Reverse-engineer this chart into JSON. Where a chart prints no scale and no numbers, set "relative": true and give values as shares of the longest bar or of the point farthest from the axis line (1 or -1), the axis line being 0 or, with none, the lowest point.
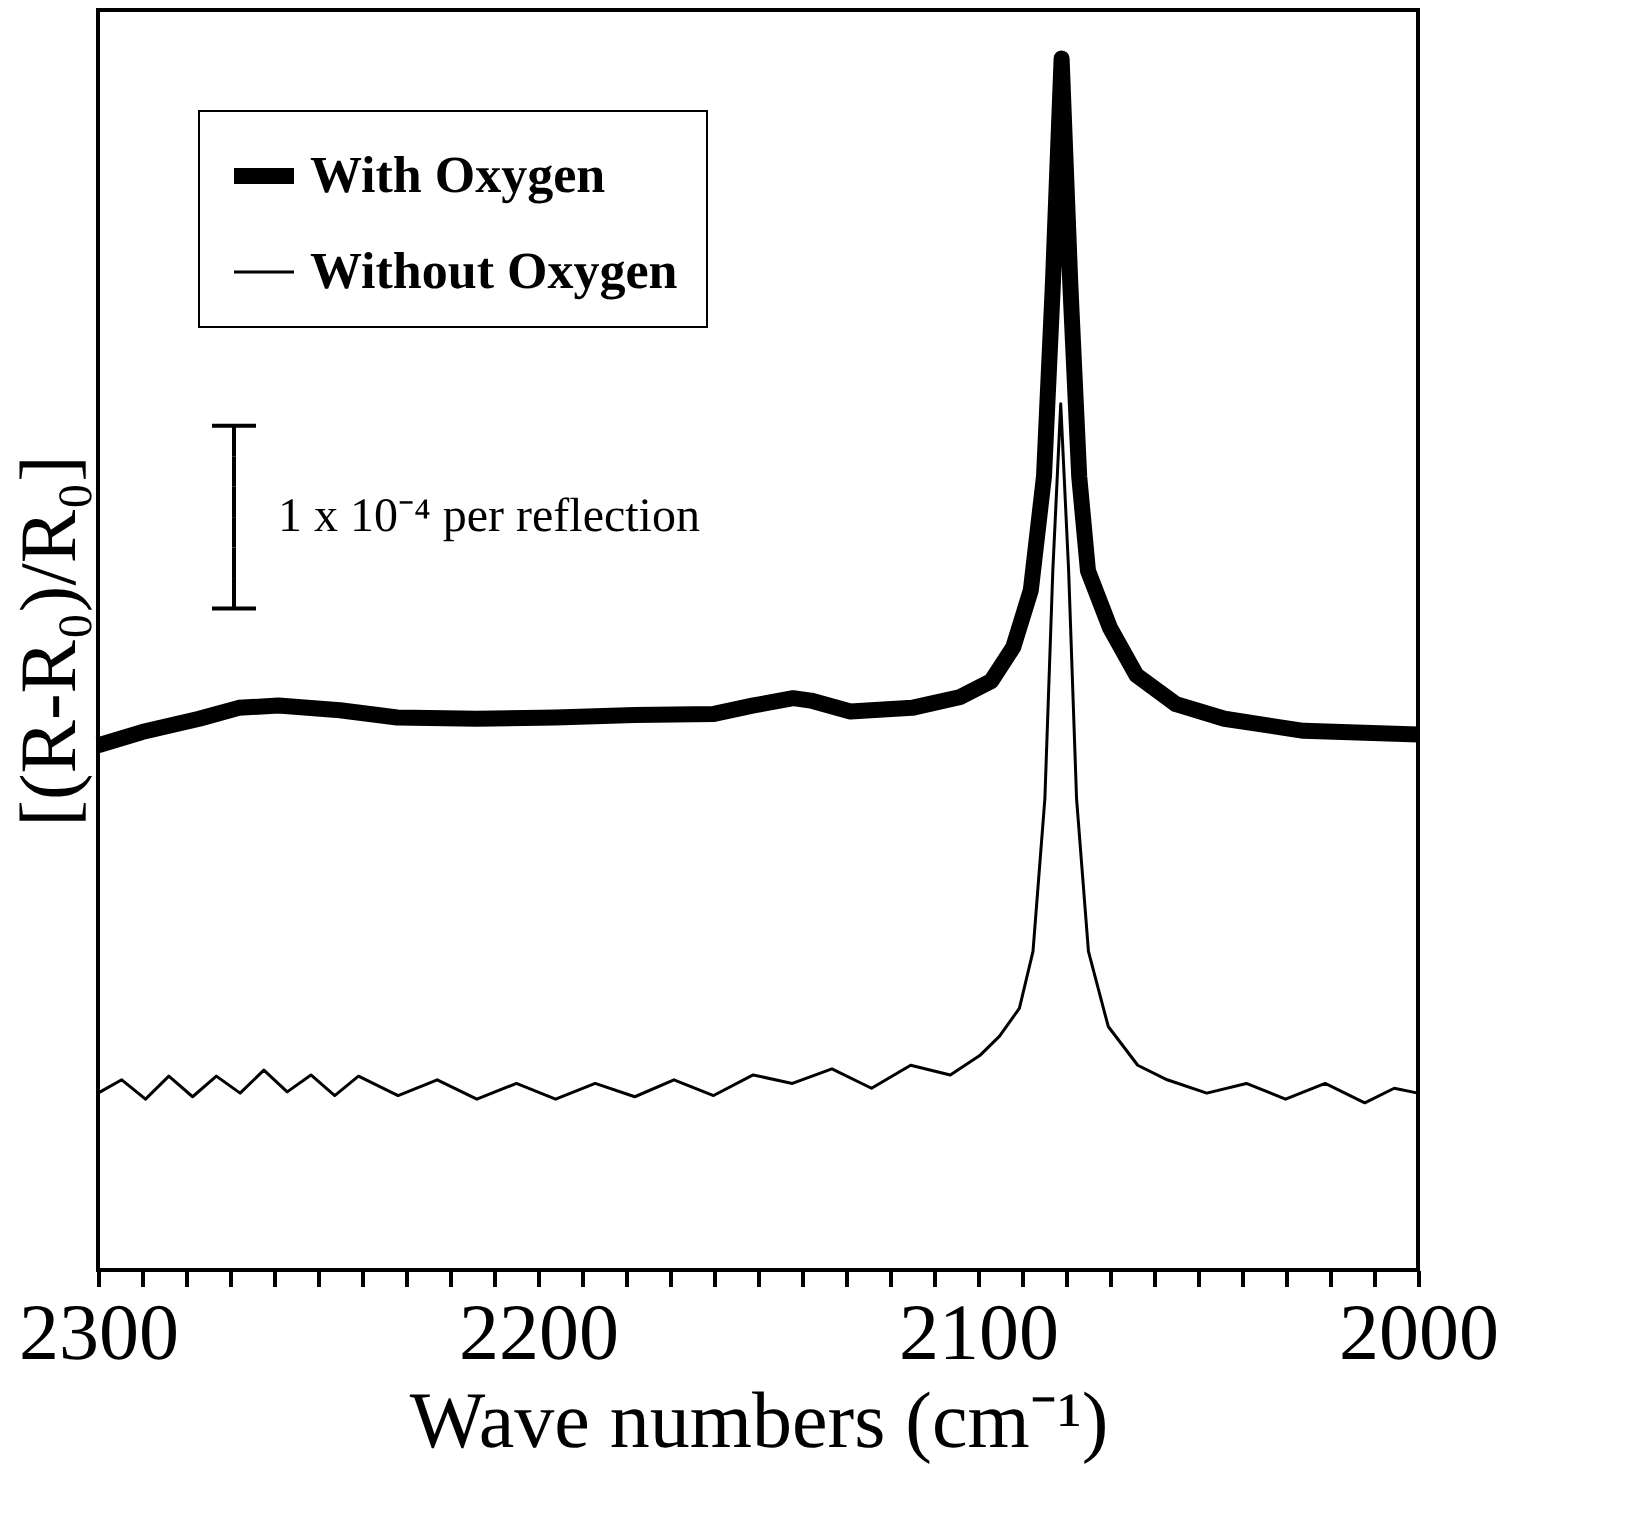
{
  "chart_data": {
    "type": "line",
    "relative": true,
    "xlabel": "Wave numbers (cm⁻¹)",
    "ylabel": "[(R-R₀)/R₀]",
    "xlim": [
      2300,
      2000
    ],
    "xticks": [
      2300,
      {
        "value": 2290,
        "label": null
      },
      {
        "value": 2280,
        "label": null
      },
      {
        "value": 2270,
        "label": null
      },
      {
        "value": 2260,
        "label": null
      },
      {
        "value": 2250,
        "label": null
      },
      {
        "value": 2240,
        "label": null
      },
      {
        "value": 2230,
        "label": null
      },
      {
        "value": 2220,
        "label": null
      },
      {
        "value": 2210,
        "label": null
      },
      2200,
      {
        "value": 2190,
        "label": null
      },
      {
        "value": 2180,
        "label": null
      },
      {
        "value": 2170,
        "label": null
      },
      {
        "value": 2160,
        "label": null
      },
      {
        "value": 2150,
        "label": null
      },
      {
        "value": 2140,
        "label": null
      },
      {
        "value": 2130,
        "label": null
      },
      {
        "value": 2120,
        "label": null
      },
      {
        "value": 2110,
        "label": null
      },
      2100,
      {
        "value": 2090,
        "label": null
      },
      {
        "value": 2080,
        "label": null
      },
      {
        "value": 2070,
        "label": null
      },
      {
        "value": 2060,
        "label": null
      },
      {
        "value": 2050,
        "label": null
      },
      {
        "value": 2040,
        "label": null
      },
      {
        "value": 2030,
        "label": null
      },
      {
        "value": 2020,
        "label": null
      },
      {
        "value": 2010,
        "label": null
      },
      2000
    ],
    "legend": "top left",
    "grid": false,
    "marker": "none",
    "annotations": [
      "1 x 10⁻⁴ per reflection"
    ],
    "series": [
      {
        "name": "With Oxygen",
        "color": "#000000",
        "x": [
          2300,
          2290,
          2277,
          2268,
          2259,
          2245,
          2232,
          2214,
          2196,
          2178,
          2160,
          2151,
          2142,
          2138,
          2129,
          2115,
          2104,
          2097,
          2092,
          2088,
          2085,
          2083,
          2081,
          2079,
          2077,
          2075,
          2070,
          2064,
          2055,
          2044,
          2026,
          2000
        ],
        "values": [
          0.433,
          0.444,
          0.455,
          0.464,
          0.466,
          0.462,
          0.456,
          0.455,
          0.456,
          0.458,
          0.459,
          0.466,
          0.472,
          0.47,
          0.461,
          0.464,
          0.473,
          0.486,
          0.514,
          0.561,
          0.655,
          0.812,
          1,
          0.812,
          0.655,
          0.577,
          0.53,
          0.491,
          0.467,
          0.455,
          0.445,
          0.442
        ]
      },
      {
        "name": "Without Oxygen",
        "color": "#000000",
        "x": [
          2300,
          2294.6,
          2289.2,
          2283.9,
          2278.5,
          2273.1,
          2267.7,
          2262.3,
          2257,
          2251.6,
          2246.2,
          2240.8,
          2231.8,
          2222.9,
          2213.9,
          2204.9,
          2196,
          2187,
          2178,
          2169.1,
          2160.1,
          2151.1,
          2142.2,
          2133.2,
          2124.2,
          2115.3,
          2106.3,
          2099.6,
          2095.1,
          2090.6,
          2087.5,
          2084.8,
          2083,
          2081.2,
          2079.4,
          2077.6,
          2074.9,
          2070.4,
          2063.7,
          2057,
          2048,
          2039,
          2030.1,
          2021.1,
          2012.1,
          2005.4,
          2000
        ],
        "values": [
          0.146,
          0.157,
          0.141,
          0.16,
          0.143,
          0.16,
          0.146,
          0.165,
          0.147,
          0.161,
          0.144,
          0.16,
          0.144,
          0.157,
          0.141,
          0.154,
          0.141,
          0.154,
          0.143,
          0.157,
          0.144,
          0.161,
          0.154,
          0.166,
          0.15,
          0.169,
          0.161,
          0.177,
          0.193,
          0.216,
          0.263,
          0.389,
          0.577,
          0.715,
          0.577,
          0.389,
          0.263,
          0.201,
          0.169,
          0.157,
          0.146,
          0.154,
          0.141,
          0.154,
          0.138,
          0.15,
          0.146
        ]
      }
    ]
  }
}
